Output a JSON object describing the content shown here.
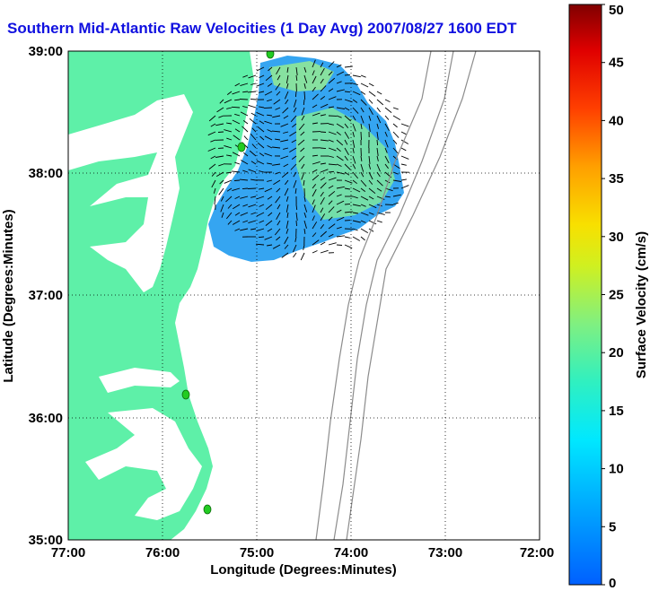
{
  "title": "Southern Mid-Atlantic Raw Velocities (1 Day Avg) 2007/08/27 1600 EDT",
  "map": {
    "xlabel": "Longitude (Degrees:Minutes)",
    "ylabel": "Latitude (Degrees:Minutes)",
    "x_ticks": [
      "77:00",
      "76:00",
      "75:00",
      "74:00",
      "73:00",
      "72:00"
    ],
    "y_ticks": [
      "39:00",
      "38:00",
      "37:00",
      "36:00",
      "35:00"
    ],
    "land_color": "#5ef0a8",
    "bathymetry_color": "#8c8c8c",
    "station_color": "#22cc22"
  },
  "colorbar": {
    "label": "Surface Velocity (cm/s)",
    "ticks": [
      "50",
      "45",
      "40",
      "35",
      "30",
      "25",
      "20",
      "15",
      "10",
      "5",
      "0"
    ],
    "min": 0,
    "max": 50
  }
}
